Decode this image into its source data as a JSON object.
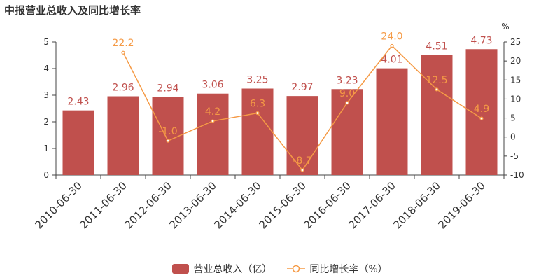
{
  "chart_data": {
    "type": "bar+line",
    "title": "中报营业总收入及同比增长率",
    "categories": [
      "2010-06-30",
      "2011-06-30",
      "2012-06-30",
      "2013-06-30",
      "2014-06-30",
      "2015-06-30",
      "2016-06-30",
      "2017-06-30",
      "2018-06-30",
      "2019-06-30"
    ],
    "series": [
      {
        "name": "营业总收入（亿）",
        "type": "bar",
        "axis": "left",
        "color": "#c0504d",
        "values": [
          2.43,
          2.96,
          2.94,
          3.06,
          3.25,
          2.97,
          3.23,
          4.01,
          4.51,
          4.73
        ],
        "labels": [
          "2.43",
          "2.96",
          "2.94",
          "3.06",
          "3.25",
          "2.97",
          "3.23",
          "4.01",
          "4.51",
          "4.73"
        ]
      },
      {
        "name": "同比增长率（%）",
        "type": "line",
        "axis": "right",
        "color": "#f59a45",
        "values": [
          null,
          22.2,
          -1.0,
          4.2,
          6.3,
          -8.7,
          9.0,
          24.0,
          12.5,
          4.9
        ],
        "labels": [
          "",
          "22.2",
          "-1.0",
          "4.2",
          "6.3",
          "-8.7",
          "9.0",
          "24.0",
          "12.5",
          "4.9"
        ]
      }
    ],
    "y_left": {
      "ylim": [
        0,
        5
      ],
      "ticks": [
        "0",
        "1",
        "2",
        "3",
        "4",
        "5"
      ],
      "tick_values": [
        0,
        1,
        2,
        3,
        4,
        5
      ]
    },
    "y_right": {
      "ylim": [
        -10,
        25
      ],
      "unit": "%",
      "ticks": [
        "-10",
        "-5",
        "0",
        "5",
        "10",
        "15",
        "20",
        "25"
      ],
      "tick_values": [
        -10,
        -5,
        0,
        5,
        10,
        15,
        20,
        25
      ]
    },
    "grid": false,
    "legend_position": "bottom-center"
  }
}
